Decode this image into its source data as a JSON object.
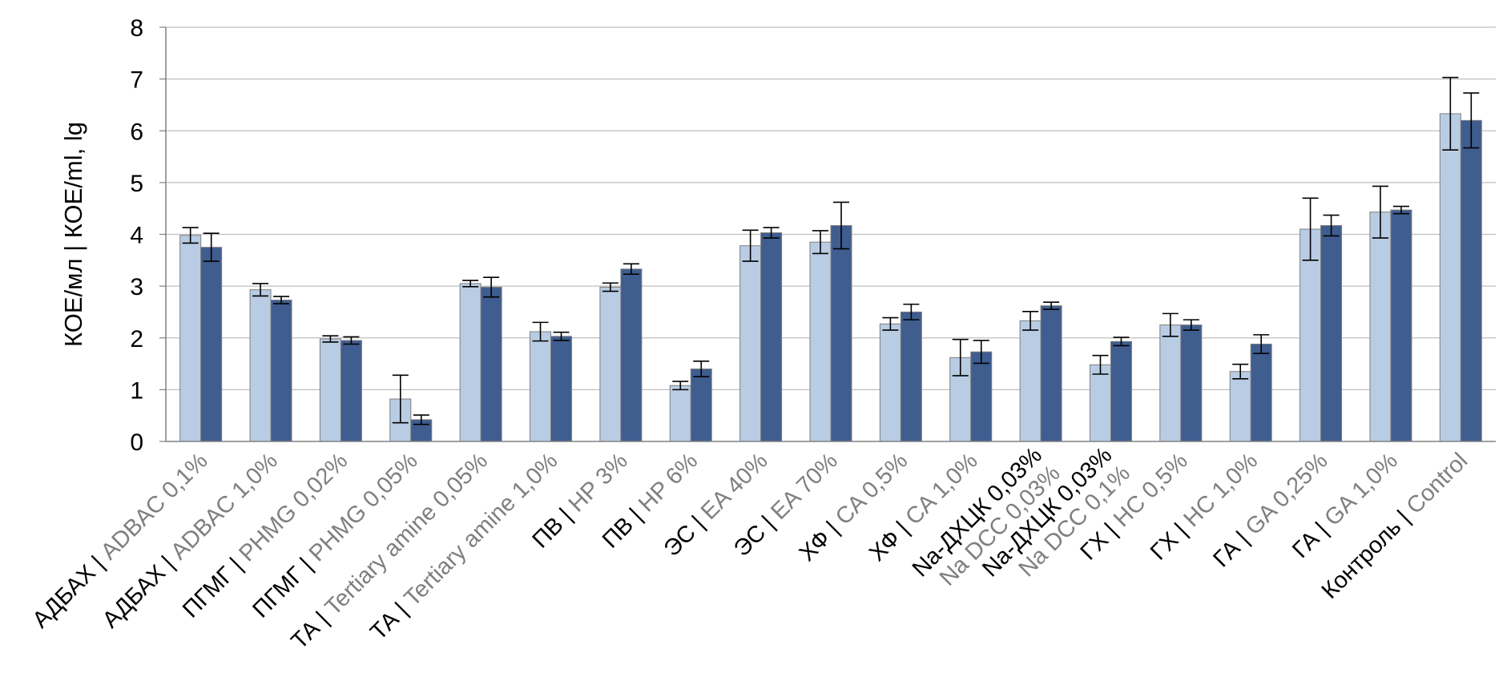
{
  "chart_data": {
    "type": "bar",
    "title": "",
    "ylabel": "КОЕ/мл | КОЕ/ml, lg",
    "xlabel": "",
    "ylim": [
      0,
      8
    ],
    "yticks": [
      0,
      1,
      2,
      3,
      4,
      5,
      6,
      7,
      8
    ],
    "grid": true,
    "legend": "none",
    "categories": [
      {
        "ru": "АДБАХ |",
        "en": " ADBAC 0,1%"
      },
      {
        "ru": "АДБАХ |",
        "en": " ADBAC 1,0%"
      },
      {
        "ru": "ПГМГ |",
        "en": " PHMG 0,02%"
      },
      {
        "ru": "ПГМГ |",
        "en": " PHMG 0,05%"
      },
      {
        "ru": "ТА |",
        "en": " Tertiary amine 0,05%"
      },
      {
        "ru": "ТА |",
        "en": " Tertiary amine 1,0%"
      },
      {
        "ru": "ПВ |",
        "en": " HP 3%"
      },
      {
        "ru": "ПВ |",
        "en": " HP 6%"
      },
      {
        "ru": "ЭС |",
        "en": " EA 40%"
      },
      {
        "ru": "ЭС |",
        "en": " EA 70%"
      },
      {
        "ru": "ХФ |",
        "en": " CA 0,5%"
      },
      {
        "ru": "ХФ |",
        "en": " CA 1,0%"
      },
      {
        "ru": "Na-ДХЦК 0,03%",
        "en": "Na DCC 0,03%",
        "two_line": true
      },
      {
        "ru": "Na-ДХЦК 0,03%",
        "en": "Na DCC 0,1%",
        "two_line": true
      },
      {
        "ru": "ГХ |",
        "en": " HC 0,5%"
      },
      {
        "ru": "ГХ |",
        "en": " HC 1,0%"
      },
      {
        "ru": "ГА |",
        "en": " GA 0,25%"
      },
      {
        "ru": "ГА |",
        "en": " GA 1,0%"
      },
      {
        "ru": "Контроль |",
        "en": " Control"
      }
    ],
    "series": [
      {
        "values": [
          3.98,
          2.93,
          1.98,
          0.82,
          3.05,
          2.12,
          2.98,
          1.08,
          3.78,
          3.85,
          2.27,
          1.62,
          2.33,
          1.48,
          2.25,
          1.35,
          4.1,
          4.43,
          6.33
        ],
        "errors": [
          0.15,
          0.12,
          0.06,
          0.46,
          0.06,
          0.18,
          0.08,
          0.08,
          0.3,
          0.22,
          0.12,
          0.35,
          0.18,
          0.18,
          0.22,
          0.14,
          0.6,
          0.5,
          0.7
        ],
        "color": "#b8cce4"
      },
      {
        "values": [
          3.75,
          2.73,
          1.95,
          0.42,
          2.98,
          2.03,
          3.33,
          1.4,
          4.03,
          4.17,
          2.5,
          1.73,
          2.62,
          1.93,
          2.25,
          1.88,
          4.17,
          4.47,
          6.2
        ],
        "errors": [
          0.27,
          0.07,
          0.07,
          0.09,
          0.19,
          0.08,
          0.1,
          0.15,
          0.1,
          0.45,
          0.15,
          0.22,
          0.07,
          0.08,
          0.1,
          0.18,
          0.2,
          0.07,
          0.53
        ],
        "color": "#3f5d8f"
      }
    ],
    "colors": {
      "ru_label": "#000000",
      "en_label": "#7f7f7f",
      "grid": "#bfbfbf",
      "axis": "#808080",
      "bar_stroke": "#7f7f7f"
    }
  }
}
